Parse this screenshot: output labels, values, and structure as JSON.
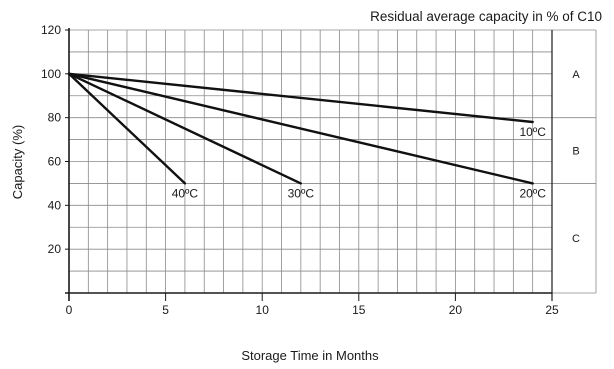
{
  "chart_data": {
    "type": "line",
    "title": "Residual average capacity in % of C10",
    "xlabel": "Storage Time in Months",
    "ylabel": "Capacity (%)",
    "xlim": [
      0,
      25
    ],
    "ylim": [
      0,
      120
    ],
    "x_ticks": [
      0,
      5,
      10,
      15,
      20,
      25
    ],
    "y_ticks": [
      20,
      40,
      60,
      80,
      100,
      120
    ],
    "x_minor_step": 1,
    "y_minor_step": 10,
    "grid": true,
    "series": [
      {
        "name": "10ºC",
        "x": [
          0,
          24
        ],
        "y": [
          100,
          78
        ]
      },
      {
        "name": "20ºC",
        "x": [
          0,
          24
        ],
        "y": [
          100,
          50
        ]
      },
      {
        "name": "30ºC",
        "x": [
          0,
          12
        ],
        "y": [
          100,
          50
        ]
      },
      {
        "name": "40ºC",
        "x": [
          0,
          6
        ],
        "y": [
          100,
          50
        ]
      }
    ],
    "zones": [
      {
        "label": "A",
        "from": 80,
        "to": 120
      },
      {
        "label": "B",
        "from": 50,
        "to": 80
      },
      {
        "label": "C",
        "from": 0,
        "to": 50
      }
    ]
  }
}
